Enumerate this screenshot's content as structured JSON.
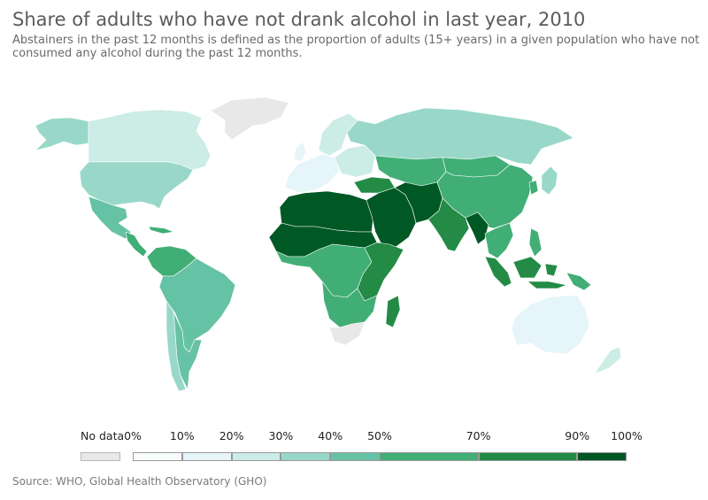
{
  "title": "Share of adults who have not drank alcohol in last year, 2010",
  "subtitle": "Abstainers in the past 12 months is defined as the proportion of adults (15+ years) in a given population who have not consumed any alcohol during the past 12 months.",
  "source": "Source: WHO, Global Health Observatory (GHO)",
  "legend": {
    "no_data_label": "No data",
    "no_data_color": "#e8e8e8",
    "thresholds": [
      "0%",
      "10%",
      "20%",
      "30%",
      "40%",
      "50%",
      "70%",
      "90%",
      "100%"
    ],
    "threshold_values": [
      0,
      10,
      20,
      30,
      40,
      50,
      70,
      90,
      100
    ],
    "colors": [
      "#f7fcfd",
      "#e5f5f9",
      "#ccece6",
      "#99d8c9",
      "#66c2a4",
      "#41ae76",
      "#238b45",
      "#005824"
    ]
  },
  "regions": [
    {
      "name": "Greenland",
      "color": "#e8e8e8"
    },
    {
      "name": "Canada",
      "color": "#ccece6"
    },
    {
      "name": "United States",
      "color": "#99d8c9"
    },
    {
      "name": "Alaska",
      "color": "#99d8c9"
    },
    {
      "name": "Mexico",
      "color": "#66c2a4"
    },
    {
      "name": "Central America",
      "color": "#41ae76"
    },
    {
      "name": "South America",
      "color": "#66c2a4"
    },
    {
      "name": "Colombia",
      "color": "#41ae76"
    },
    {
      "name": "Argentina",
      "color": "#66c2a4"
    },
    {
      "name": "Chile",
      "color": "#99d8c9"
    },
    {
      "name": "Western Europe",
      "color": "#e5f5f9"
    },
    {
      "name": "Scandinavia",
      "color": "#ccece6"
    },
    {
      "name": "Eastern Europe",
      "color": "#ccece6"
    },
    {
      "name": "Russia",
      "color": "#99d8c9"
    },
    {
      "name": "Kazakhstan",
      "color": "#41ae76"
    },
    {
      "name": "China",
      "color": "#41ae76"
    },
    {
      "name": "Mongolia",
      "color": "#41ae76"
    },
    {
      "name": "Japan",
      "color": "#99d8c9"
    },
    {
      "name": "Turkey",
      "color": "#238b45"
    },
    {
      "name": "North Africa",
      "color": "#005824"
    },
    {
      "name": "Middle East",
      "color": "#005824"
    },
    {
      "name": "Iran / Afghanistan / Pakistan",
      "color": "#005824"
    },
    {
      "name": "India",
      "color": "#238b45"
    },
    {
      "name": "Southeast Asia",
      "color": "#41ae76"
    },
    {
      "name": "Myanmar",
      "color": "#005824"
    },
    {
      "name": "Indonesia",
      "color": "#238b45"
    },
    {
      "name": "Philippines",
      "color": "#41ae76"
    },
    {
      "name": "Papua New Guinea",
      "color": "#41ae76"
    },
    {
      "name": "Sahel",
      "color": "#005824"
    },
    {
      "name": "Central Africa",
      "color": "#41ae76"
    },
    {
      "name": "East Africa",
      "color": "#238b45"
    },
    {
      "name": "Southern Africa",
      "color": "#41ae76"
    },
    {
      "name": "South Africa",
      "color": "#e8e8e8"
    },
    {
      "name": "Madagascar",
      "color": "#238b45"
    },
    {
      "name": "Australia",
      "color": "#e5f5f9"
    },
    {
      "name": "New Zealand",
      "color": "#ccece6"
    }
  ]
}
